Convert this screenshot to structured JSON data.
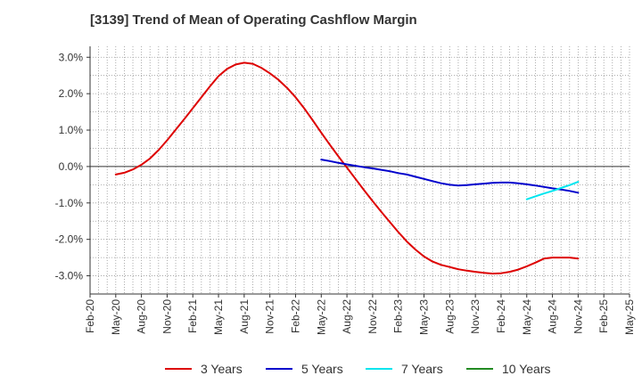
{
  "chart_data": {
    "type": "line",
    "title": "[3139]  Trend of Mean of Operating Cashflow Margin",
    "xlabel": "",
    "ylabel": "",
    "y_unit": "%",
    "ylim": [
      -3.5,
      3.3
    ],
    "y_ticks": [
      3.0,
      2.0,
      1.0,
      0.0,
      -1.0,
      -2.0,
      -3.0
    ],
    "y_tick_labels": [
      "3.0%",
      "2.0%",
      "1.0%",
      "0.0%",
      "-1.0%",
      "-2.0%",
      "-3.0%"
    ],
    "x_tick_labels": [
      "Feb-20",
      "May-20",
      "Aug-20",
      "Nov-20",
      "Feb-21",
      "May-21",
      "Aug-21",
      "Nov-21",
      "Feb-22",
      "May-22",
      "Aug-22",
      "Nov-22",
      "Feb-23",
      "May-23",
      "Aug-23",
      "Nov-23",
      "Feb-24",
      "May-24",
      "Aug-24",
      "Nov-24",
      "Feb-25",
      "May-25"
    ],
    "grid": true,
    "legend_position": "bottom",
    "series": [
      {
        "name": "3 Years",
        "color": "#dd0000",
        "x": [
          "May-20",
          "Jun-20",
          "Jul-20",
          "Aug-20",
          "Sep-20",
          "Oct-20",
          "Nov-20",
          "Dec-20",
          "Jan-21",
          "Feb-21",
          "Mar-21",
          "Apr-21",
          "May-21",
          "Jun-21",
          "Jul-21",
          "Aug-21",
          "Sep-21",
          "Oct-21",
          "Nov-21",
          "Dec-21",
          "Jan-22",
          "Feb-22",
          "Mar-22",
          "Apr-22",
          "May-22",
          "Jun-22",
          "Jul-22",
          "Aug-22",
          "Sep-22",
          "Oct-22",
          "Nov-22",
          "Dec-22",
          "Jan-23",
          "Feb-23",
          "Mar-23",
          "Apr-23",
          "May-23",
          "Jun-23",
          "Jul-23",
          "Aug-23",
          "Sep-23",
          "Oct-23",
          "Nov-23",
          "Dec-23",
          "Jan-24",
          "Feb-24",
          "Mar-24",
          "Apr-24",
          "May-24",
          "Jun-24",
          "Jul-24",
          "Aug-24",
          "Sep-24",
          "Oct-24",
          "Nov-24"
        ],
        "values": [
          -0.22,
          -0.17,
          -0.08,
          0.05,
          0.22,
          0.45,
          0.72,
          1.01,
          1.3,
          1.6,
          1.9,
          2.2,
          2.48,
          2.68,
          2.8,
          2.85,
          2.82,
          2.71,
          2.56,
          2.38,
          2.16,
          1.9,
          1.6,
          1.27,
          0.93,
          0.6,
          0.28,
          -0.03,
          -0.34,
          -0.65,
          -0.95,
          -1.24,
          -1.52,
          -1.8,
          -2.06,
          -2.28,
          -2.47,
          -2.61,
          -2.7,
          -2.76,
          -2.82,
          -2.86,
          -2.89,
          -2.92,
          -2.94,
          -2.93,
          -2.89,
          -2.83,
          -2.74,
          -2.64,
          -2.53,
          -2.5,
          -2.5,
          -2.5,
          -2.53
        ]
      },
      {
        "name": "5 Years",
        "color": "#0000cc",
        "x": [
          "May-22",
          "Jun-22",
          "Jul-22",
          "Aug-22",
          "Sep-22",
          "Oct-22",
          "Nov-22",
          "Dec-22",
          "Jan-23",
          "Feb-23",
          "Mar-23",
          "Apr-23",
          "May-23",
          "Jun-23",
          "Jul-23",
          "Aug-23",
          "Sep-23",
          "Oct-23",
          "Nov-23",
          "Dec-23",
          "Jan-24",
          "Feb-24",
          "Mar-24",
          "Apr-24",
          "May-24",
          "Jun-24",
          "Jul-24",
          "Aug-24",
          "Sep-24",
          "Oct-24",
          "Nov-24"
        ],
        "values": [
          0.19,
          0.15,
          0.1,
          0.06,
          0.02,
          -0.02,
          -0.05,
          -0.09,
          -0.13,
          -0.18,
          -0.22,
          -0.28,
          -0.34,
          -0.4,
          -0.46,
          -0.5,
          -0.52,
          -0.51,
          -0.49,
          -0.47,
          -0.45,
          -0.44,
          -0.44,
          -0.46,
          -0.49,
          -0.52,
          -0.56,
          -0.6,
          -0.63,
          -0.67,
          -0.72
        ]
      },
      {
        "name": "7 Years",
        "color": "#00e5ee",
        "x": [
          "May-24",
          "Jun-24",
          "Jul-24",
          "Aug-24",
          "Sep-24",
          "Oct-24",
          "Nov-24"
        ],
        "values": [
          -0.9,
          -0.82,
          -0.74,
          -0.67,
          -0.59,
          -0.51,
          -0.42
        ]
      },
      {
        "name": "10 Years",
        "color": "#228b22",
        "x": [],
        "values": []
      }
    ]
  }
}
